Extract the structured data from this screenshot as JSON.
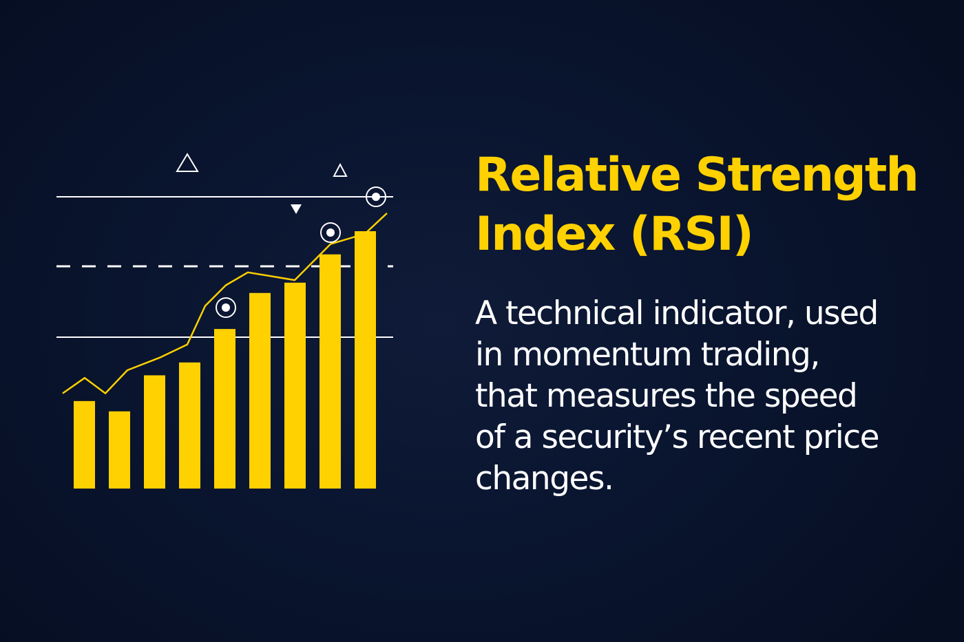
{
  "heading": {
    "line1": "Relative Strength",
    "line2": "Index (RSI)"
  },
  "description": {
    "lines": [
      "A technical indicator, used",
      "in momentum trading,",
      "that measures the speed",
      "of a security’s recent price",
      "changes."
    ]
  },
  "colors": {
    "accent": "#FFD100",
    "background": "#0a1530",
    "line": "#ffffff"
  },
  "illustration": {
    "bar_heights": [
      0.34,
      0.3,
      0.44,
      0.49,
      0.62,
      0.76,
      0.8,
      0.91,
      1.0
    ],
    "trend_line": [
      0.37,
      0.43,
      0.37,
      0.46,
      0.51,
      0.56,
      0.71,
      0.79,
      0.84,
      0.81,
      0.95,
      0.99,
      1.07
    ],
    "highlighted_points": [
      5,
      9,
      11
    ],
    "icons": [
      "triangle-up-outline-icon",
      "triangle-up-outline-icon",
      "triangle-down-filled-icon"
    ]
  }
}
